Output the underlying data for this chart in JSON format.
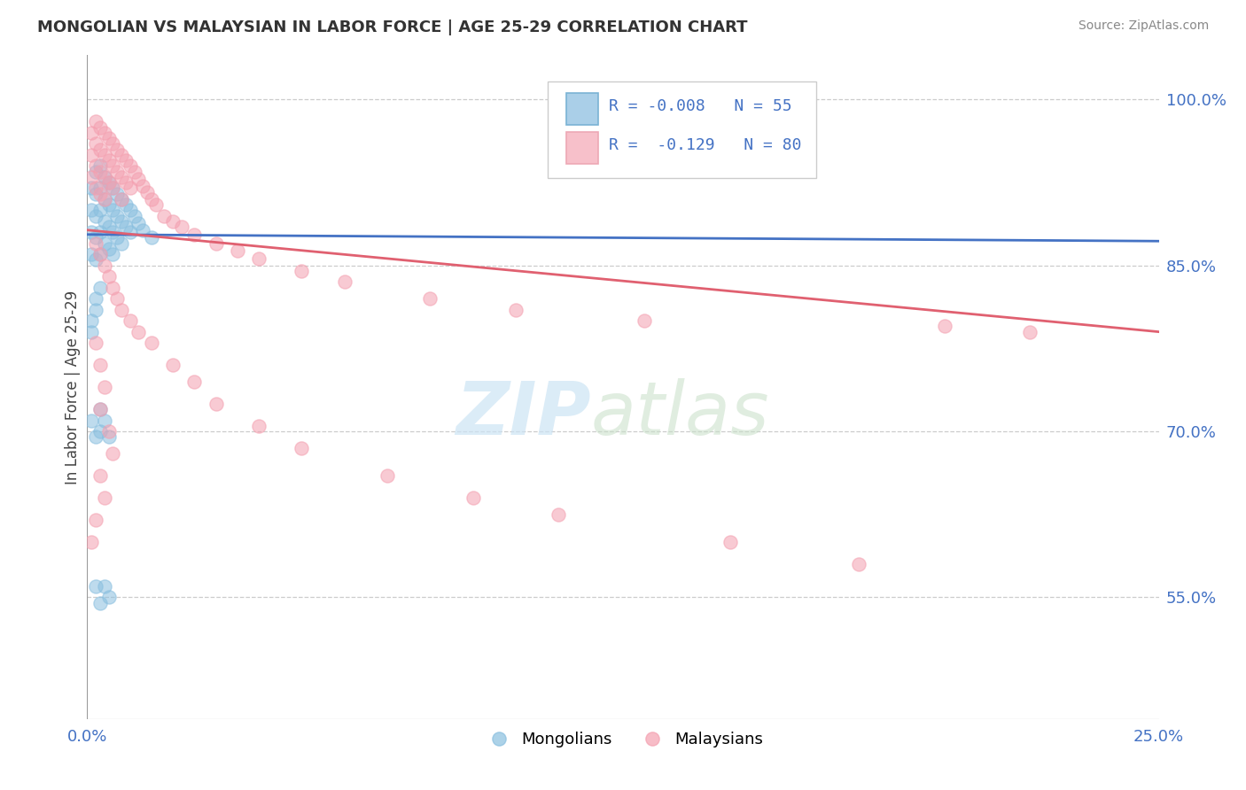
{
  "title": "MONGOLIAN VS MALAYSIAN IN LABOR FORCE | AGE 25-29 CORRELATION CHART",
  "source": "Source: ZipAtlas.com",
  "ylabel": "In Labor Force | Age 25-29",
  "xlim": [
    0.0,
    0.25
  ],
  "ylim": [
    0.44,
    1.04
  ],
  "xtick_positions": [
    0.0,
    0.05,
    0.1,
    0.15,
    0.2,
    0.25
  ],
  "xtick_labels": [
    "0.0%",
    "",
    "",
    "",
    "",
    "25.0%"
  ],
  "yticks": [
    0.55,
    0.7,
    0.85,
    1.0
  ],
  "ytick_labels": [
    "55.0%",
    "70.0%",
    "85.0%",
    "100.0%"
  ],
  "mongolian_color": "#89bfdf",
  "malaysian_color": "#f4a0b0",
  "mongolian_trend_color": "#4472c4",
  "malaysian_trend_color": "#e06070",
  "legend_R_mongolian": "-0.008",
  "legend_N_mongolian": "55",
  "legend_R_malaysian": "-0.129",
  "legend_N_malaysian": "80",
  "mong_trend_y0": 0.878,
  "mong_trend_y1": 0.872,
  "malay_trend_y0": 0.882,
  "malay_trend_y1": 0.79,
  "mong_pts_x": [
    0.001,
    0.001,
    0.001,
    0.001,
    0.002,
    0.002,
    0.002,
    0.002,
    0.002,
    0.003,
    0.003,
    0.003,
    0.003,
    0.003,
    0.004,
    0.004,
    0.004,
    0.004,
    0.005,
    0.005,
    0.005,
    0.005,
    0.006,
    0.006,
    0.006,
    0.006,
    0.007,
    0.007,
    0.007,
    0.008,
    0.008,
    0.008,
    0.009,
    0.009,
    0.01,
    0.01,
    0.011,
    0.012,
    0.013,
    0.015,
    0.001,
    0.002,
    0.003,
    0.003,
    0.004,
    0.005,
    0.002,
    0.003,
    0.004,
    0.005,
    0.002,
    0.001,
    0.003,
    0.002,
    0.001
  ],
  "mong_pts_y": [
    0.92,
    0.9,
    0.88,
    0.86,
    0.935,
    0.915,
    0.895,
    0.875,
    0.855,
    0.94,
    0.92,
    0.9,
    0.88,
    0.86,
    0.93,
    0.91,
    0.89,
    0.87,
    0.925,
    0.905,
    0.885,
    0.865,
    0.92,
    0.9,
    0.88,
    0.86,
    0.915,
    0.895,
    0.875,
    0.91,
    0.89,
    0.87,
    0.905,
    0.885,
    0.9,
    0.88,
    0.895,
    0.888,
    0.882,
    0.875,
    0.71,
    0.695,
    0.72,
    0.7,
    0.71,
    0.695,
    0.56,
    0.545,
    0.56,
    0.55,
    0.81,
    0.79,
    0.83,
    0.82,
    0.8
  ],
  "malay_pts_x": [
    0.001,
    0.001,
    0.001,
    0.002,
    0.002,
    0.002,
    0.002,
    0.003,
    0.003,
    0.003,
    0.003,
    0.004,
    0.004,
    0.004,
    0.004,
    0.005,
    0.005,
    0.005,
    0.006,
    0.006,
    0.006,
    0.007,
    0.007,
    0.008,
    0.008,
    0.008,
    0.009,
    0.009,
    0.01,
    0.01,
    0.011,
    0.012,
    0.013,
    0.014,
    0.015,
    0.016,
    0.018,
    0.02,
    0.022,
    0.025,
    0.03,
    0.035,
    0.04,
    0.05,
    0.06,
    0.08,
    0.1,
    0.13,
    0.2,
    0.22,
    0.002,
    0.003,
    0.004,
    0.005,
    0.006,
    0.007,
    0.008,
    0.01,
    0.012,
    0.015,
    0.02,
    0.025,
    0.03,
    0.04,
    0.05,
    0.07,
    0.09,
    0.11,
    0.15,
    0.18,
    0.002,
    0.003,
    0.004,
    0.003,
    0.005,
    0.006,
    0.003,
    0.004,
    0.002,
    0.001
  ],
  "malay_pts_y": [
    0.97,
    0.95,
    0.93,
    0.98,
    0.96,
    0.94,
    0.92,
    0.975,
    0.955,
    0.935,
    0.915,
    0.97,
    0.95,
    0.93,
    0.91,
    0.965,
    0.945,
    0.925,
    0.96,
    0.94,
    0.92,
    0.955,
    0.935,
    0.95,
    0.93,
    0.91,
    0.945,
    0.925,
    0.94,
    0.92,
    0.935,
    0.928,
    0.922,
    0.916,
    0.91,
    0.905,
    0.895,
    0.89,
    0.885,
    0.878,
    0.87,
    0.863,
    0.856,
    0.845,
    0.835,
    0.82,
    0.81,
    0.8,
    0.795,
    0.79,
    0.87,
    0.86,
    0.85,
    0.84,
    0.83,
    0.82,
    0.81,
    0.8,
    0.79,
    0.78,
    0.76,
    0.745,
    0.725,
    0.705,
    0.685,
    0.66,
    0.64,
    0.625,
    0.6,
    0.58,
    0.78,
    0.76,
    0.74,
    0.72,
    0.7,
    0.68,
    0.66,
    0.64,
    0.62,
    0.6
  ]
}
